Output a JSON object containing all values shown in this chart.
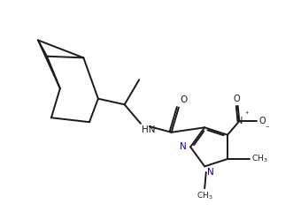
{
  "bg_color": "#ffffff",
  "line_color": "#1a1a1a",
  "text_color": "#1a1a1a",
  "N_color": "#0000cd",
  "line_width": 1.4,
  "figsize": [
    3.31,
    2.4
  ],
  "dpi": 100,
  "xlim": [
    0,
    10
  ],
  "ylim": [
    0,
    7.2
  ]
}
